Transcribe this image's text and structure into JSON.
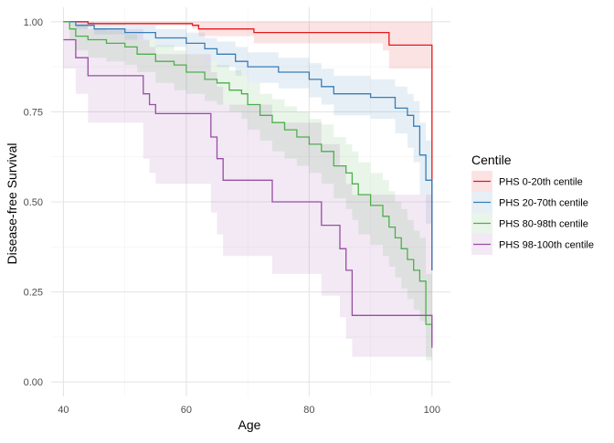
{
  "chart_data": {
    "type": "line",
    "subtype": "kaplan-meier step curves with confidence bands",
    "xlabel": "Age",
    "ylabel": "Disease-free Survival",
    "xlim": [
      38,
      103
    ],
    "ylim": [
      -0.04,
      1.04
    ],
    "x_ticks": [
      40,
      60,
      80,
      100
    ],
    "y_ticks": [
      0,
      0.25,
      0.5,
      0.75,
      1.0
    ],
    "x_tick_labels": [
      "40",
      "60",
      "80",
      "100"
    ],
    "y_tick_labels": [
      "0.00",
      "0.25",
      "0.50",
      "0.75",
      "1.00"
    ],
    "grid": true,
    "legend_position": "right",
    "legend_title": "Centile",
    "series": [
      {
        "name": "PHS 0-20th centile",
        "color": "#e41a1c",
        "x": [
          40,
          44,
          61,
          62,
          71,
          92,
          93,
          99.9,
          100
        ],
        "y": [
          1.0,
          0.995,
          0.99,
          0.98,
          0.97,
          0.97,
          0.935,
          0.935,
          0.31
        ],
        "upper": [
          1.0,
          1.0,
          1.0,
          1.0,
          1.0,
          1.0,
          1.0,
          1.0,
          1.0
        ],
        "lower": [
          1.0,
          0.99,
          0.98,
          0.96,
          0.94,
          0.92,
          0.87,
          0.87,
          0.13
        ]
      },
      {
        "name": "PHS 20-70th centile",
        "color": "#377eb8",
        "x": [
          40,
          42,
          45,
          50,
          55,
          60,
          63,
          65,
          68,
          70,
          75,
          80,
          82,
          84,
          90,
          94,
          96,
          97,
          98,
          99,
          100
        ],
        "y": [
          1.0,
          0.99,
          0.98,
          0.97,
          0.955,
          0.94,
          0.925,
          0.91,
          0.89,
          0.875,
          0.86,
          0.84,
          0.82,
          0.8,
          0.79,
          0.76,
          0.74,
          0.71,
          0.63,
          0.56,
          0.31
        ],
        "upper": [
          1.0,
          1.0,
          0.995,
          0.99,
          0.98,
          0.97,
          0.955,
          0.945,
          0.93,
          0.915,
          0.9,
          0.885,
          0.87,
          0.85,
          0.84,
          0.82,
          0.8,
          0.78,
          0.72,
          0.67,
          0.57
        ],
        "lower": [
          1.0,
          0.98,
          0.965,
          0.95,
          0.93,
          0.91,
          0.89,
          0.875,
          0.85,
          0.83,
          0.815,
          0.79,
          0.77,
          0.74,
          0.73,
          0.69,
          0.65,
          0.61,
          0.52,
          0.44,
          0.1
        ]
      },
      {
        "name": "PHS 80-98th centile",
        "color": "#4daf4a",
        "x": [
          40,
          41,
          42,
          44,
          47,
          50,
          52,
          55,
          58,
          60,
          63,
          65,
          67,
          69,
          70,
          72,
          74,
          76,
          78,
          80,
          82,
          84,
          86,
          87,
          88,
          90,
          92,
          93,
          94,
          95,
          96,
          97,
          98,
          99,
          100
        ],
        "y": [
          1.0,
          0.98,
          0.96,
          0.95,
          0.94,
          0.93,
          0.91,
          0.89,
          0.88,
          0.86,
          0.84,
          0.83,
          0.81,
          0.8,
          0.77,
          0.74,
          0.72,
          0.7,
          0.68,
          0.66,
          0.64,
          0.6,
          0.58,
          0.55,
          0.52,
          0.49,
          0.46,
          0.43,
          0.4,
          0.37,
          0.34,
          0.31,
          0.28,
          0.16,
          0.11
        ],
        "upper": [
          1.0,
          1.0,
          0.99,
          0.98,
          0.975,
          0.965,
          0.95,
          0.935,
          0.92,
          0.91,
          0.89,
          0.88,
          0.865,
          0.85,
          0.83,
          0.8,
          0.785,
          0.765,
          0.75,
          0.73,
          0.715,
          0.68,
          0.66,
          0.64,
          0.61,
          0.58,
          0.56,
          0.53,
          0.5,
          0.48,
          0.45,
          0.42,
          0.4,
          0.3,
          0.25
        ],
        "lower": [
          1.0,
          0.95,
          0.92,
          0.9,
          0.89,
          0.88,
          0.86,
          0.83,
          0.81,
          0.8,
          0.78,
          0.77,
          0.75,
          0.73,
          0.7,
          0.67,
          0.64,
          0.62,
          0.6,
          0.58,
          0.55,
          0.51,
          0.48,
          0.45,
          0.41,
          0.38,
          0.35,
          0.32,
          0.29,
          0.26,
          0.23,
          0.2,
          0.17,
          0.06,
          0.03
        ]
      },
      {
        "name": "PHS 98-100th centile",
        "color": "#984ea3",
        "x": [
          40,
          42,
          44,
          53,
          54,
          55,
          64,
          65,
          66,
          67,
          74,
          82,
          85,
          86,
          87,
          100
        ],
        "y": [
          0.95,
          0.9,
          0.85,
          0.8,
          0.77,
          0.745,
          0.68,
          0.62,
          0.56,
          0.56,
          0.5,
          0.435,
          0.37,
          0.31,
          0.185,
          0.095
        ],
        "upper": [
          1.0,
          1.0,
          0.98,
          0.95,
          0.93,
          0.91,
          0.86,
          0.82,
          0.77,
          0.77,
          0.72,
          0.66,
          0.6,
          0.55,
          0.52,
          0.52
        ],
        "lower": [
          0.87,
          0.8,
          0.72,
          0.62,
          0.58,
          0.55,
          0.47,
          0.41,
          0.35,
          0.35,
          0.3,
          0.24,
          0.18,
          0.12,
          0.07,
          0.02
        ]
      }
    ]
  }
}
